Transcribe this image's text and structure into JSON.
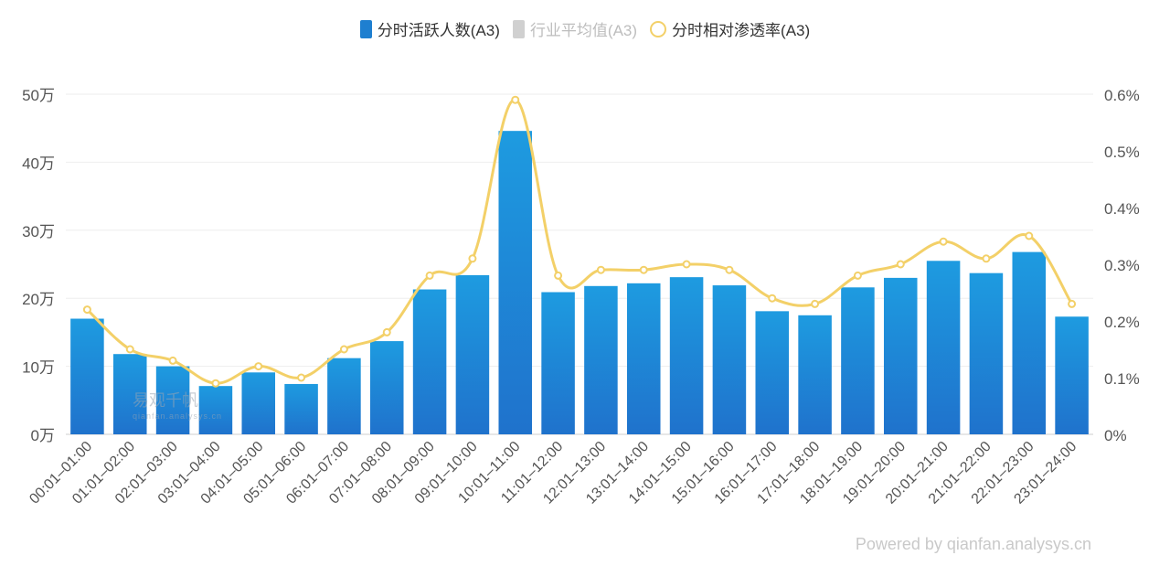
{
  "legend": {
    "active_users": "分时活跃人数(A3)",
    "industry_avg": "行业平均值(A3)",
    "penetration": "分时相对渗透率(A3)"
  },
  "watermark": {
    "logo": "易观千帆",
    "sub": "qianfan.analysys.cn"
  },
  "powered_by": "Powered by qianfan.analysys.cn",
  "colors": {
    "bar_top": "#1e9be0",
    "bar_bottom": "#1f72cc",
    "line": "#f3d068"
  },
  "chart_data": {
    "type": "bar",
    "categories": [
      "00:01–01:00",
      "01:01–02:00",
      "02:01–03:00",
      "03:01–04:00",
      "04:01–05:00",
      "05:01–06:00",
      "06:01–07:00",
      "07:01–08:00",
      "08:01–09:00",
      "09:01–10:00",
      "10:01–11:00",
      "11:01–12:00",
      "12:01–13:00",
      "13:01–14:00",
      "14:01–15:00",
      "15:01–16:00",
      "16:01–17:00",
      "17:01–18:00",
      "18:01–19:00",
      "19:01–20:00",
      "20:01–21:00",
      "21:01–22:00",
      "22:01–23:00",
      "23:01–24:00"
    ],
    "series": [
      {
        "name": "分时活跃人数(A3)",
        "type": "bar",
        "axis": "left",
        "values": [
          17,
          11.8,
          10,
          7.1,
          9.1,
          7.4,
          11.2,
          13.7,
          21.3,
          23.4,
          44.6,
          20.9,
          21.8,
          22.2,
          23.1,
          21.9,
          18.1,
          17.5,
          21.6,
          23,
          25.5,
          23.7,
          26.8,
          17.3
        ]
      },
      {
        "name": "分时相对渗透率(A3)",
        "type": "line",
        "axis": "right",
        "values": [
          0.22,
          0.15,
          0.13,
          0.09,
          0.12,
          0.1,
          0.15,
          0.18,
          0.28,
          0.31,
          0.59,
          0.28,
          0.29,
          0.29,
          0.3,
          0.29,
          0.24,
          0.23,
          0.28,
          0.3,
          0.34,
          0.31,
          0.35,
          0.23
        ]
      }
    ],
    "y_left": {
      "ticks": [
        "0万",
        "10万",
        "20万",
        "30万",
        "40万",
        "50万"
      ],
      "ylim": [
        0,
        50
      ],
      "unit": "万"
    },
    "y_right": {
      "ticks": [
        "0%",
        "0.1%",
        "0.2%",
        "0.3%",
        "0.4%",
        "0.5%",
        "0.6%"
      ],
      "ylim": [
        0,
        0.6
      ],
      "unit": "%"
    },
    "grid": true,
    "legend_position": "top-center"
  }
}
